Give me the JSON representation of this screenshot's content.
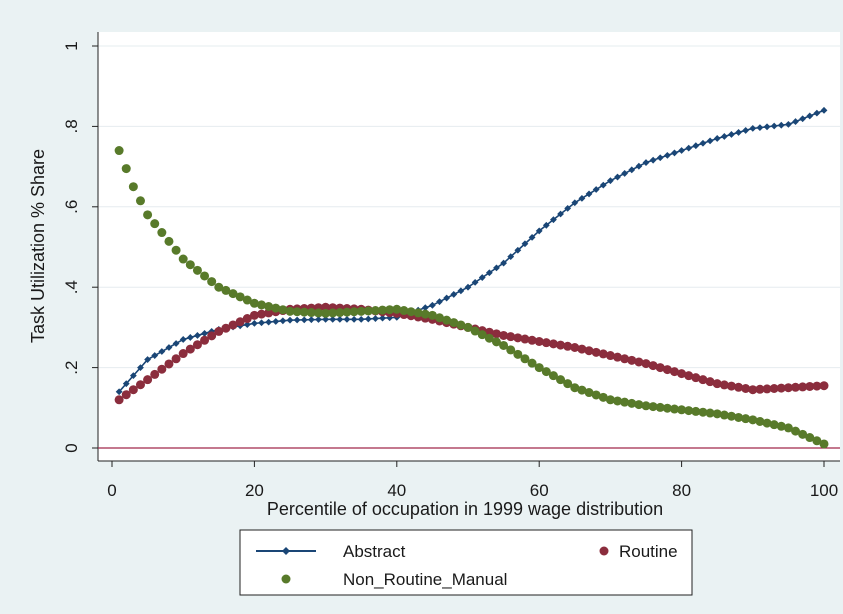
{
  "chart_data": {
    "type": "scatter",
    "xlabel": "Percentile of occupation in 1999 wage distribution",
    "ylabel": "Task Utilization % Share",
    "xlim": [
      0,
      100
    ],
    "ylim": [
      0,
      1
    ],
    "x_ticks": [
      0,
      20,
      40,
      60,
      80,
      100
    ],
    "x_tick_labels": [
      "0",
      "20",
      "40",
      "60",
      "80",
      "100"
    ],
    "y_ticks": [
      0,
      0.2,
      0.4,
      0.6,
      0.8,
      1
    ],
    "y_tick_labels": [
      "0",
      ".2",
      ".4",
      ".6",
      ".8",
      "1"
    ],
    "grid": true,
    "reference_line": {
      "y": 0,
      "color": "#a0284a"
    },
    "legend": {
      "position": "bottom",
      "entries": [
        "Abstract",
        "Routine",
        "Non_Routine_Manual"
      ]
    },
    "x_range": [
      1,
      100
    ],
    "series": [
      {
        "name": "Abstract",
        "color": "#1a4676",
        "marker": "diamond-line",
        "points": [
          [
            1,
            0.14
          ],
          [
            5,
            0.22
          ],
          [
            10,
            0.27
          ],
          [
            15,
            0.295
          ],
          [
            20,
            0.31
          ],
          [
            25,
            0.318
          ],
          [
            30,
            0.32
          ],
          [
            35,
            0.32
          ],
          [
            40,
            0.325
          ],
          [
            45,
            0.355
          ],
          [
            50,
            0.4
          ],
          [
            55,
            0.46
          ],
          [
            60,
            0.54
          ],
          [
            65,
            0.61
          ],
          [
            70,
            0.665
          ],
          [
            75,
            0.71
          ],
          [
            80,
            0.74
          ],
          [
            85,
            0.77
          ],
          [
            90,
            0.795
          ],
          [
            95,
            0.805
          ],
          [
            100,
            0.84
          ]
        ]
      },
      {
        "name": "Routine",
        "color": "#8b2d3d",
        "marker": "circle",
        "points": [
          [
            1,
            0.12
          ],
          [
            5,
            0.17
          ],
          [
            10,
            0.235
          ],
          [
            15,
            0.29
          ],
          [
            20,
            0.33
          ],
          [
            25,
            0.345
          ],
          [
            30,
            0.35
          ],
          [
            35,
            0.345
          ],
          [
            40,
            0.335
          ],
          [
            45,
            0.32
          ],
          [
            50,
            0.3
          ],
          [
            55,
            0.28
          ],
          [
            60,
            0.265
          ],
          [
            65,
            0.25
          ],
          [
            70,
            0.23
          ],
          [
            75,
            0.21
          ],
          [
            80,
            0.185
          ],
          [
            85,
            0.16
          ],
          [
            90,
            0.145
          ],
          [
            95,
            0.15
          ],
          [
            100,
            0.155
          ]
        ]
      },
      {
        "name": "Non_Routine_Manual",
        "color": "#587a2a",
        "marker": "circle",
        "points": [
          [
            1,
            0.74
          ],
          [
            3,
            0.65
          ],
          [
            5,
            0.58
          ],
          [
            10,
            0.47
          ],
          [
            15,
            0.4
          ],
          [
            20,
            0.36
          ],
          [
            25,
            0.34
          ],
          [
            30,
            0.335
          ],
          [
            35,
            0.34
          ],
          [
            40,
            0.345
          ],
          [
            45,
            0.33
          ],
          [
            50,
            0.3
          ],
          [
            55,
            0.255
          ],
          [
            60,
            0.2
          ],
          [
            65,
            0.15
          ],
          [
            70,
            0.12
          ],
          [
            75,
            0.105
          ],
          [
            80,
            0.095
          ],
          [
            85,
            0.085
          ],
          [
            90,
            0.07
          ],
          [
            95,
            0.05
          ],
          [
            100,
            0.01
          ]
        ]
      }
    ]
  }
}
